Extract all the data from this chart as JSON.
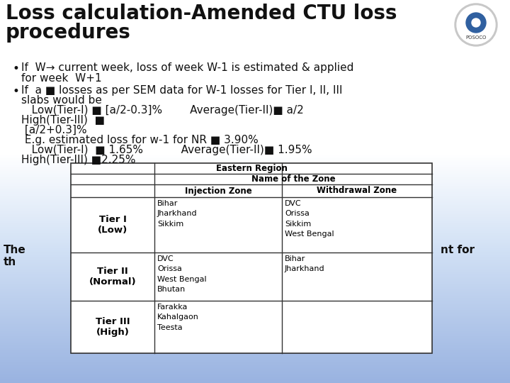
{
  "title_line1": "Loss calculation-Amended CTU loss",
  "title_line2": "procedures",
  "bullet1": "If  W→ current week, loss of week W-1 is estimated & applied",
  "bullet1b": "for week  W+1",
  "bullet2_line1": "If  a ■ losses as per SEM data for W-1 losses for Tier I, II, III",
  "bullet2_line2": "slabs would be",
  "bullet2_line3": "   Low(Tier-I) ■ [a/2-0.3]%        Average(Tier-II)■ a/2",
  "bullet2_line4": "High(Tier-III)  ■",
  "bullet2_line5": " [a/2+0.3]%",
  "bullet2_line6": " E.g. estimated loss for w-1 for NR ■ 3.90%",
  "bullet2_line7": "   Low(Tier-I)  ■ 1.65%           Average(Tier-II)■ 1.95%",
  "bullet2_line8": "High(Tier-III) ■2.25%",
  "table_title1": "Eastern Region",
  "table_title2": "Name of the Zone",
  "col_header1": "Injection Zone",
  "col_header2": "Withdrawal Zone",
  "tier1_label": "Tier I\n(Low)",
  "tier1_inj": "Bihar\nJharkhand\nSikkim",
  "tier1_with": "DVC\nOrissa\nSikkim\nWest Bengal",
  "tier2_label": "Tier II\n(Normal)",
  "tier2_inj": "DVC\nOrissa\nWest Bengal\nBhutan",
  "tier2_with": "Bihar\nJharkhand",
  "tier3_label": "Tier III\n(High)",
  "tier3_inj": "Farakka\nKahalgaon\nTeesta",
  "tier3_with": "",
  "footer_left1": "The",
  "footer_left2": "th",
  "footer_right1": "nt for",
  "title_fontsize": 20,
  "body_fontsize": 11,
  "table_fontsize": 8.5
}
